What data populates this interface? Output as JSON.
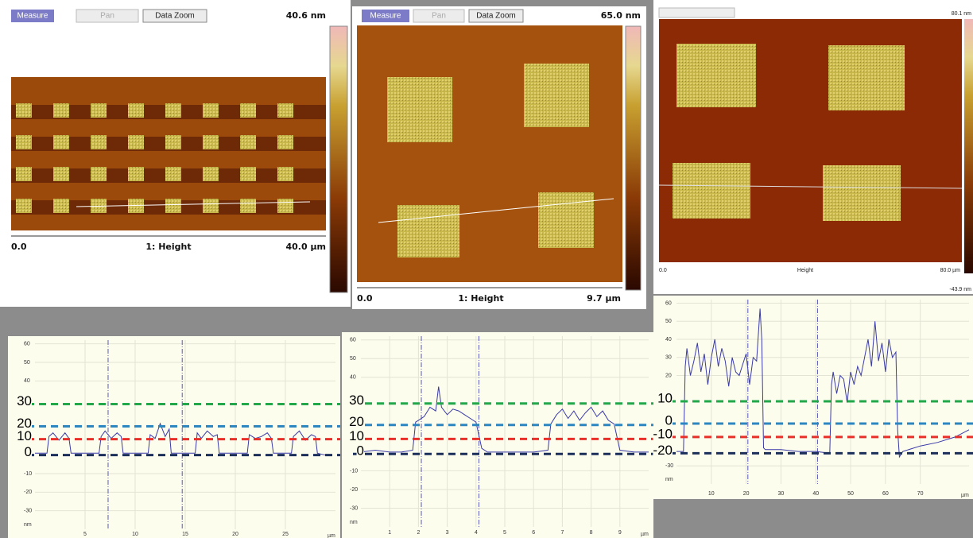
{
  "images": [
    {
      "toolbar": [
        "Measure",
        "Pan",
        "Data Zoom"
      ],
      "scale_top": "40.6 nm",
      "left": "0.0",
      "center": "1: Height",
      "right": "40.0 µm"
    },
    {
      "toolbar": [
        "Measure",
        "Pan",
        "Data Zoom"
      ],
      "scale_top": "65.0 nm",
      "left": "0.0",
      "center": "1: Height",
      "right": "9.7 µm"
    },
    {
      "scale_top": "80.1 nm",
      "scale_bottom": "-43.9 nm",
      "left": "0.0",
      "center": "Height",
      "right": "80.0 µm"
    }
  ],
  "chart_data": [
    {
      "type": "line",
      "x_label": "µm",
      "y_label": "nm",
      "color": "#3a3aa8",
      "xlim": [
        0,
        30
      ],
      "ylim": [
        -40,
        62
      ],
      "xticks": [
        5,
        10,
        15,
        20,
        25
      ],
      "yticks": [
        60,
        50,
        40,
        -10,
        -20,
        -30
      ],
      "grid": true,
      "cursors": [
        7.3,
        14.7
      ],
      "x": [
        0,
        1.2,
        1.4,
        1.8,
        2.4,
        3.0,
        3.4,
        3.6,
        6.4,
        6.6,
        7.0,
        7.6,
        8.2,
        8.6,
        8.8,
        11.3,
        11.5,
        12.0,
        12.5,
        13.0,
        13.4,
        13.6,
        16.0,
        16.2,
        16.6,
        17.2,
        17.8,
        18.2,
        18.4,
        21.2,
        21.4,
        22.0,
        22.6,
        23.2,
        23.6,
        23.8,
        25.6,
        25.8,
        26.4,
        27.0,
        27.6,
        28.0,
        28.2,
        29
      ],
      "values": [
        1,
        1,
        10,
        12,
        8,
        12,
        9,
        1,
        1,
        10,
        13,
        9,
        12,
        10,
        1,
        1,
        11,
        9,
        17,
        10,
        14,
        1,
        1,
        12,
        9,
        13,
        10,
        11,
        1,
        1,
        11,
        9,
        10,
        12,
        9,
        1,
        1,
        10,
        13,
        8,
        11,
        10,
        1,
        0
      ],
      "reference_lines": [
        {
          "value": 27.5,
          "color": "#22a84a"
        },
        {
          "value": 15.5,
          "color": "#2e86c1"
        },
        {
          "value": 8.6,
          "color": "#e8302a"
        },
        {
          "value": 0,
          "color": "#1c2e5a"
        }
      ],
      "level_labels": [
        "30",
        "20",
        "10",
        "0"
      ]
    },
    {
      "type": "line",
      "x_label": "µm",
      "y_label": "nm",
      "color": "#3a3aa8",
      "xlim": [
        0,
        10
      ],
      "ylim": [
        -40,
        62
      ],
      "xticks": [
        1,
        2,
        3,
        4,
        5,
        6,
        7,
        8,
        9
      ],
      "yticks": [
        60,
        50,
        40,
        -10,
        -20,
        -30
      ],
      "grid": true,
      "cursors": [
        2.1,
        4.1
      ],
      "x": [
        0,
        0.5,
        1.0,
        1.4,
        1.8,
        1.9,
        2.0,
        2.2,
        2.4,
        2.6,
        2.7,
        2.8,
        3.0,
        3.2,
        3.4,
        3.6,
        3.8,
        4.0,
        4.2,
        4.4,
        5.0,
        6.0,
        6.5,
        6.6,
        6.8,
        7.0,
        7.2,
        7.4,
        7.6,
        7.8,
        8.0,
        8.2,
        8.4,
        8.6,
        8.8,
        9.0,
        9.5,
        10
      ],
      "values": [
        0,
        1,
        0,
        0,
        1,
        16,
        17,
        19,
        24,
        22,
        35,
        24,
        20,
        23,
        22,
        20,
        18,
        16,
        2,
        0,
        0,
        0,
        1,
        15,
        20,
        23,
        18,
        22,
        17,
        21,
        24,
        19,
        22,
        17,
        15,
        1,
        0,
        0
      ],
      "reference_lines": [
        {
          "value": 26,
          "color": "#22a84a"
        },
        {
          "value": 14.5,
          "color": "#2e86c1"
        },
        {
          "value": 7,
          "color": "#e8302a"
        },
        {
          "value": -1,
          "color": "#1c2e5a"
        }
      ],
      "level_labels": [
        "30",
        "20",
        "10",
        "0"
      ]
    },
    {
      "type": "line",
      "x_label": "µm",
      "y_label": "nm",
      "color": "#3a3aa8",
      "xlim": [
        0,
        84
      ],
      "ylim": [
        -40,
        62
      ],
      "xticks": [
        10,
        20,
        30,
        40,
        50,
        60,
        70
      ],
      "yticks": [
        60,
        50,
        40,
        30,
        20,
        -30
      ],
      "grid": true,
      "cursors": [
        20.5,
        40.5
      ],
      "x": [
        0,
        2,
        2.5,
        3,
        4,
        5,
        6,
        7,
        8,
        9,
        10,
        11,
        12,
        13,
        14,
        15,
        16,
        17,
        18,
        19,
        20,
        21,
        22,
        23,
        24,
        24.5,
        25,
        25.5,
        30,
        35,
        40,
        44,
        44.5,
        45,
        46,
        47,
        48,
        49,
        50,
        51,
        52,
        53,
        54,
        55,
        56,
        57,
        58,
        59,
        60,
        61,
        62,
        63,
        63.5,
        64,
        65,
        70,
        75,
        80,
        84
      ],
      "values": [
        -22,
        -22,
        25,
        35,
        20,
        28,
        38,
        22,
        32,
        15,
        30,
        40,
        25,
        35,
        28,
        14,
        30,
        22,
        20,
        26,
        32,
        15,
        30,
        28,
        57,
        40,
        -20,
        -21,
        -21,
        -22,
        -22,
        -23,
        15,
        22,
        10,
        20,
        18,
        5,
        22,
        15,
        25,
        20,
        30,
        40,
        25,
        50,
        28,
        38,
        22,
        40,
        30,
        33,
        -10,
        -25,
        -22,
        -19,
        -17,
        -14,
        -10
      ],
      "reference_lines": [
        {
          "value": 5.7,
          "color": "#22a84a"
        },
        {
          "value": -6.6,
          "color": "#2e86c1"
        },
        {
          "value": -14,
          "color": "#e8302a"
        },
        {
          "value": -23,
          "color": "#1c2e5a"
        }
      ],
      "level_labels": [
        "10",
        "0",
        "-10",
        "-20"
      ]
    }
  ]
}
